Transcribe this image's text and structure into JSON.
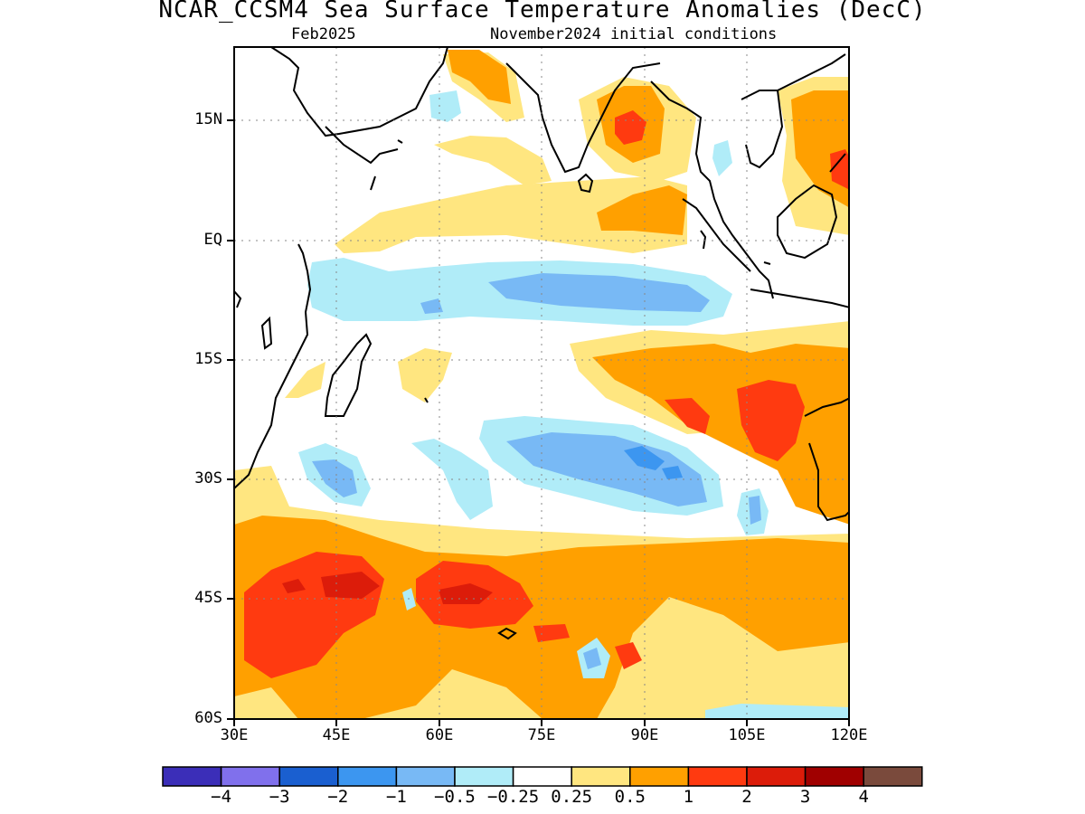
{
  "title": "NCAR_CCSM4 Sea Surface Temperature Anomalies (DecC)",
  "valid_month": "Feb2025",
  "init_text": "November2024 initial conditions",
  "y_axis_labels": [
    "15N",
    "EQ",
    "15S",
    "30S",
    "45S",
    "60S"
  ],
  "x_axis_labels": [
    "30E",
    "45E",
    "60E",
    "75E",
    "90E",
    "105E",
    "120E"
  ],
  "colorbar": {
    "labels": [
      "−4",
      "−3",
      "−2",
      "−1",
      "−0.5",
      "−0.25",
      "0.25",
      "0.5",
      "1",
      "2",
      "3",
      "4"
    ],
    "colors": [
      "#3b2eb8",
      "#8070ec",
      "#1a5fd0",
      "#3c96f0",
      "#78b9f5",
      "#b0ecf8",
      "#ffffff",
      "#ffe680",
      "#ffa000",
      "#ff3a10",
      "#dc1c0a",
      "#a00000",
      "#7a4a3c"
    ]
  },
  "map": {
    "region": "Indian Ocean",
    "lon_range": [
      "30E",
      "120E"
    ],
    "lat_range": [
      "60S",
      "25N"
    ],
    "legend_placement": "bottom"
  }
}
